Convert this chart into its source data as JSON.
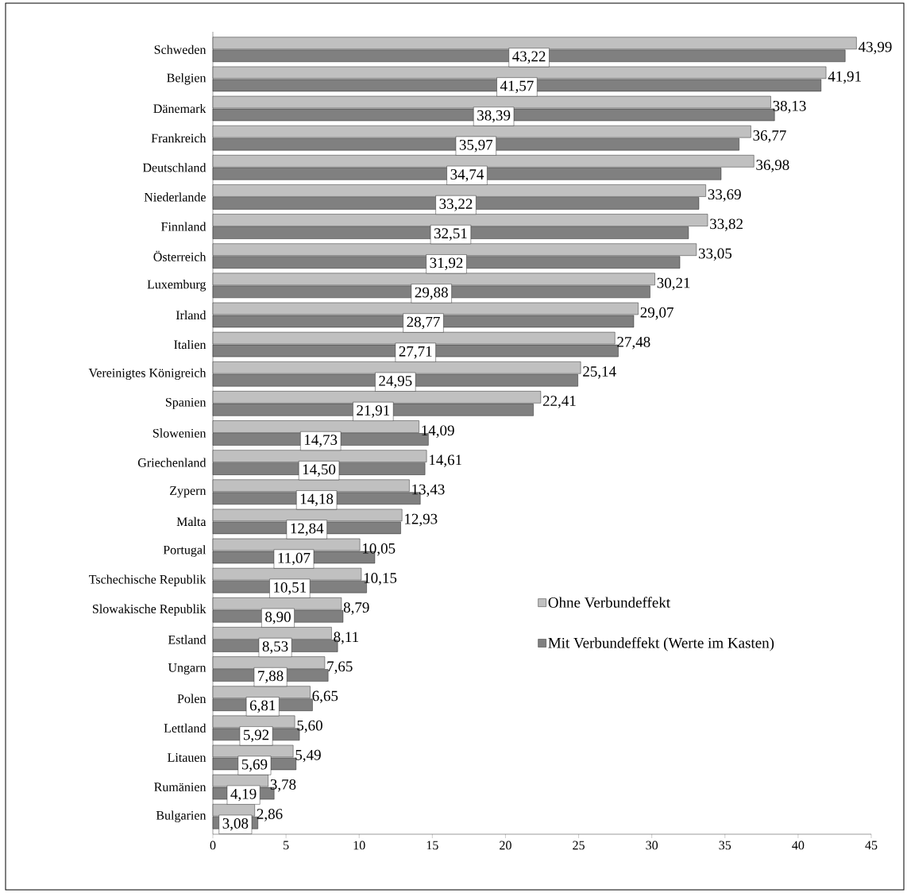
{
  "chart_data": {
    "type": "bar",
    "orientation": "horizontal",
    "categories": [
      "Schweden",
      "Belgien",
      "Dänemark",
      "Frankreich",
      "Deutschland",
      "Niederlande",
      "Finnland",
      "Österreich",
      "Luxemburg",
      "Irland",
      "Italien",
      "Vereinigtes Königreich",
      "Spanien",
      "Slowenien",
      "Griechenland",
      "Zypern",
      "Malta",
      "Portugal",
      "Tschechische Republik",
      "Slowakische Republik",
      "Estland",
      "Ungarn",
      "Polen",
      "Lettland",
      "Litauen",
      "Rumänien",
      "Bulgarien"
    ],
    "series": [
      {
        "name": "Ohne Verbundeffekt",
        "color": "#c0c0c0",
        "values": [
          43.99,
          41.91,
          38.13,
          36.77,
          36.98,
          33.69,
          33.82,
          33.05,
          30.21,
          29.07,
          27.48,
          25.14,
          22.41,
          14.09,
          14.61,
          13.43,
          12.93,
          10.05,
          10.15,
          8.79,
          8.11,
          7.65,
          6.65,
          5.6,
          5.49,
          3.78,
          2.86
        ],
        "value_labels": [
          "43,99",
          "41,91",
          "38,13",
          "36,77",
          "36,98",
          "33,69",
          "33,82",
          "33,05",
          "30,21",
          "29,07",
          "27,48",
          "25,14",
          "22,41",
          "14,09",
          "14,61",
          "13,43",
          "12,93",
          "10,05",
          "10,15",
          "8,79",
          "8,11",
          "7,65",
          "6,65",
          "5,60",
          "5,49",
          "3,78",
          "2,86"
        ]
      },
      {
        "name": "Mit Verbundeffekt (Werte im Kasten)",
        "color": "#808080",
        "values": [
          43.22,
          41.57,
          38.39,
          35.97,
          34.74,
          33.22,
          32.51,
          31.92,
          29.88,
          28.77,
          27.71,
          24.95,
          21.91,
          14.73,
          14.5,
          14.18,
          12.84,
          11.07,
          10.51,
          8.9,
          8.53,
          7.88,
          6.81,
          5.92,
          5.69,
          4.19,
          3.08
        ],
        "value_labels": [
          "43,22",
          "41,57",
          "38,39",
          "35,97",
          "34,74",
          "33,22",
          "32,51",
          "31,92",
          "29,88",
          "28,77",
          "27,71",
          "24,95",
          "21,91",
          "14,73",
          "14,50",
          "14,18",
          "12,84",
          "11,07",
          "10,51",
          "8,90",
          "8,53",
          "7,88",
          "6,81",
          "5,92",
          "5,69",
          "4,19",
          "3,08"
        ]
      }
    ],
    "xlim": [
      0,
      45
    ],
    "xticks": [
      0,
      5,
      10,
      15,
      20,
      25,
      30,
      35,
      40,
      45
    ],
    "grid": false,
    "legend": "right"
  }
}
